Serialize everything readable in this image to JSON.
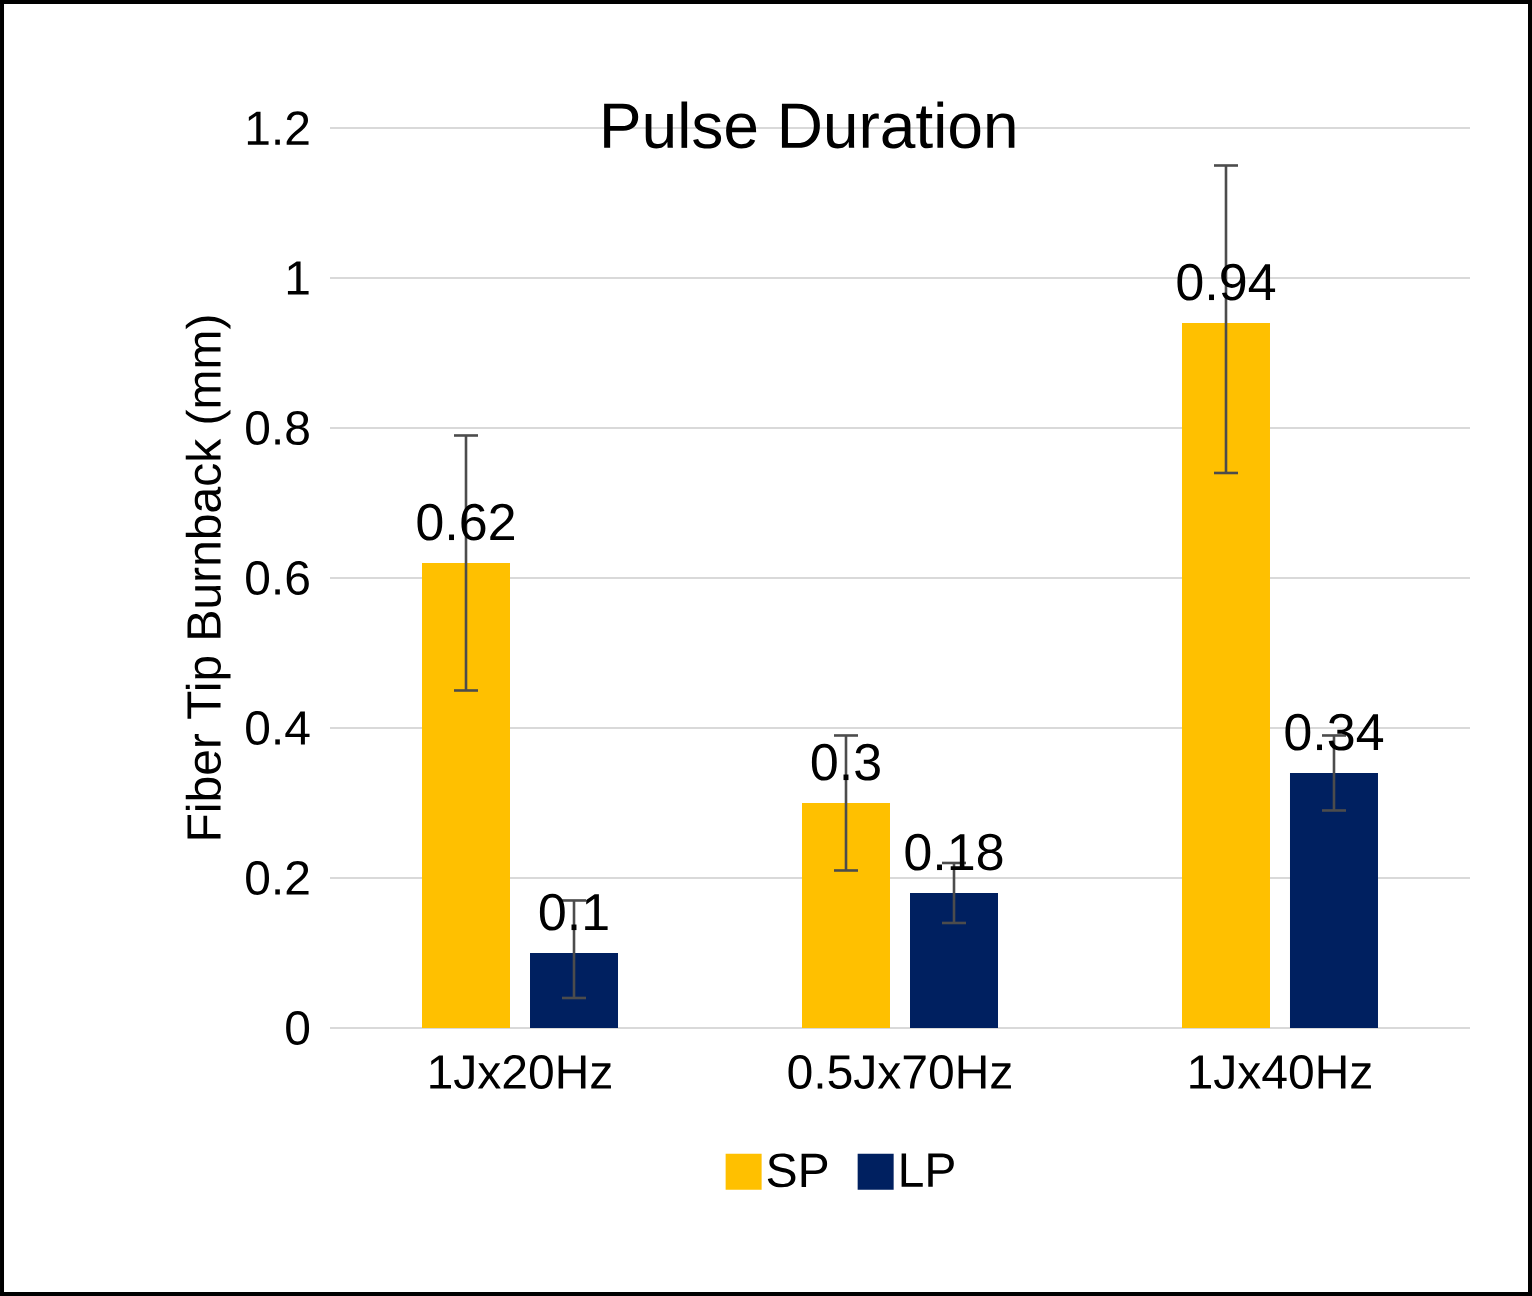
{
  "chart_data": {
    "type": "bar",
    "title": "Pulse Duration",
    "ylabel": "Fiber Tip Burnback (mm)",
    "categories": [
      "1Jx20Hz",
      "0.5Jx70Hz",
      "1Jx40Hz"
    ],
    "series": [
      {
        "name": "SP",
        "color": "#ffc000",
        "values": [
          0.62,
          0.3,
          0.94
        ],
        "errors": [
          [
            0.45,
            0.79
          ],
          [
            0.21,
            0.39
          ],
          [
            0.74,
            1.15
          ]
        ]
      },
      {
        "name": "LP",
        "color": "#002060",
        "values": [
          0.1,
          0.18,
          0.34
        ],
        "errors": [
          [
            0.04,
            0.17
          ],
          [
            0.14,
            0.22
          ],
          [
            0.29,
            0.39
          ]
        ]
      }
    ],
    "ylim": [
      0,
      1.2
    ],
    "yticks": [
      0,
      0.2,
      0.4,
      0.6,
      0.8,
      1,
      1.2
    ],
    "grid": "y",
    "legend": "bottom",
    "data_labels": true
  }
}
